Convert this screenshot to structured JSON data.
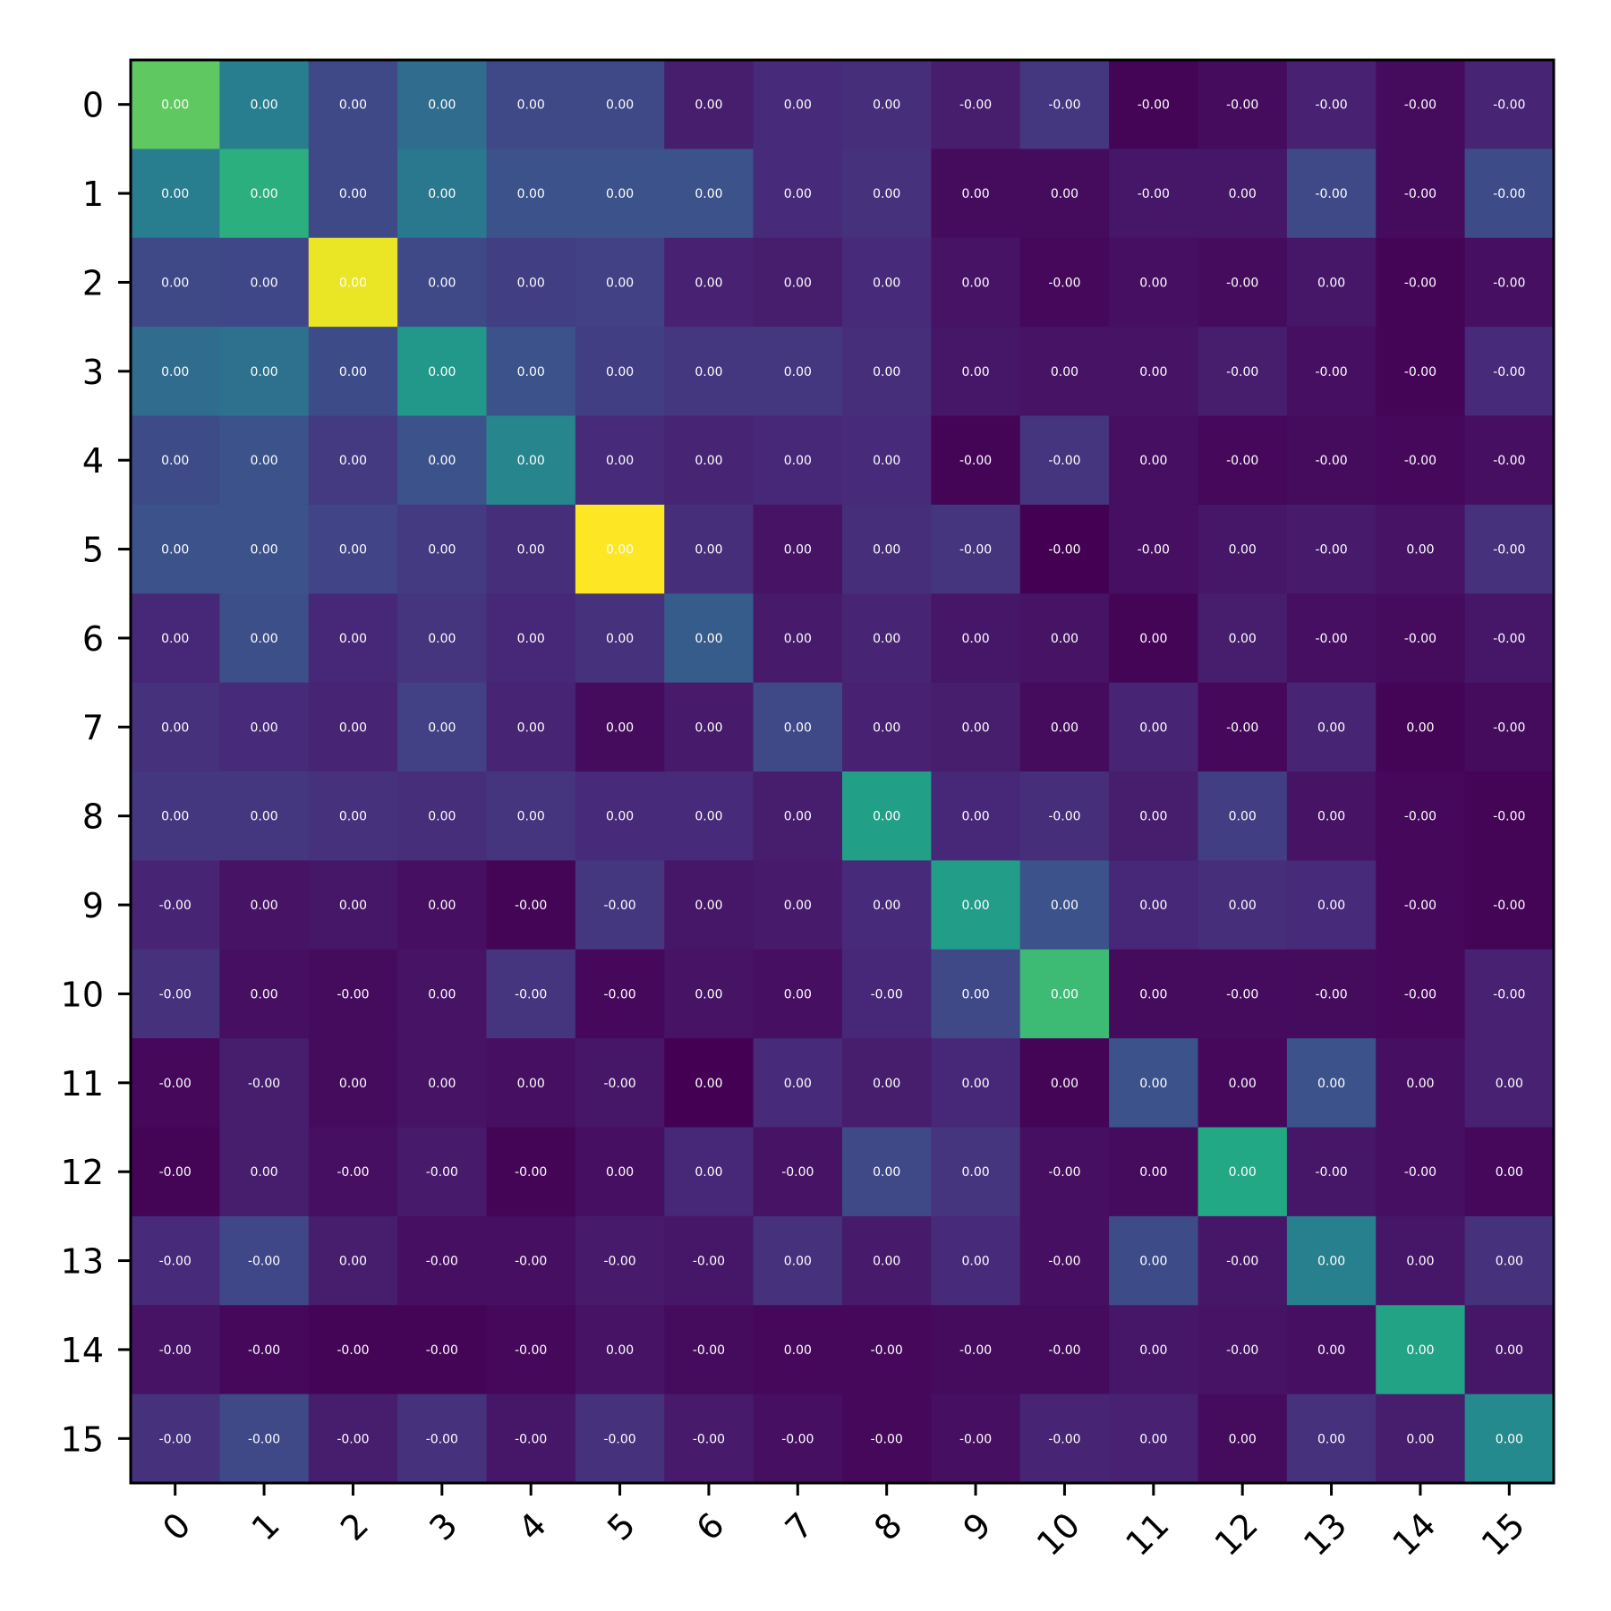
{
  "chart_data": {
    "type": "heatmap",
    "title": "",
    "xlabel": "",
    "ylabel": "",
    "colormap": "viridis",
    "x_categories": [
      "0",
      "1",
      "2",
      "3",
      "4",
      "5",
      "6",
      "7",
      "8",
      "9",
      "10",
      "11",
      "12",
      "13",
      "14",
      "15"
    ],
    "y_categories": [
      "0",
      "1",
      "2",
      "3",
      "4",
      "5",
      "6",
      "7",
      "8",
      "9",
      "10",
      "11",
      "12",
      "13",
      "14",
      "15"
    ],
    "vmin": 0.0,
    "vmax": 1.0,
    "intensity": [
      [
        0.75,
        0.42,
        0.22,
        0.35,
        0.22,
        0.22,
        0.08,
        0.12,
        0.13,
        0.08,
        0.16,
        0.01,
        0.03,
        0.09,
        0.03,
        0.1
      ],
      [
        0.42,
        0.63,
        0.22,
        0.4,
        0.25,
        0.25,
        0.25,
        0.12,
        0.14,
        0.03,
        0.03,
        0.06,
        0.06,
        0.22,
        0.03,
        0.23
      ],
      [
        0.22,
        0.21,
        0.97,
        0.22,
        0.18,
        0.19,
        0.09,
        0.08,
        0.12,
        0.05,
        0.02,
        0.04,
        0.03,
        0.06,
        0.01,
        0.04
      ],
      [
        0.35,
        0.37,
        0.23,
        0.53,
        0.25,
        0.18,
        0.16,
        0.16,
        0.13,
        0.06,
        0.05,
        0.05,
        0.08,
        0.04,
        0.01,
        0.12
      ],
      [
        0.23,
        0.25,
        0.17,
        0.25,
        0.45,
        0.12,
        0.1,
        0.11,
        0.12,
        0.01,
        0.15,
        0.04,
        0.02,
        0.03,
        0.02,
        0.04
      ],
      [
        0.25,
        0.25,
        0.2,
        0.17,
        0.13,
        1.0,
        0.13,
        0.05,
        0.13,
        0.15,
        0.0,
        0.04,
        0.06,
        0.07,
        0.05,
        0.14
      ],
      [
        0.11,
        0.24,
        0.11,
        0.15,
        0.11,
        0.14,
        0.29,
        0.07,
        0.1,
        0.06,
        0.05,
        0.01,
        0.08,
        0.04,
        0.03,
        0.06
      ],
      [
        0.14,
        0.12,
        0.1,
        0.19,
        0.1,
        0.03,
        0.07,
        0.22,
        0.09,
        0.08,
        0.03,
        0.1,
        0.02,
        0.1,
        0.01,
        0.03
      ],
      [
        0.16,
        0.16,
        0.14,
        0.13,
        0.15,
        0.12,
        0.12,
        0.08,
        0.56,
        0.11,
        0.13,
        0.08,
        0.18,
        0.05,
        0.02,
        0.01
      ],
      [
        0.1,
        0.05,
        0.06,
        0.04,
        0.01,
        0.16,
        0.06,
        0.07,
        0.12,
        0.55,
        0.25,
        0.11,
        0.13,
        0.12,
        0.02,
        0.01
      ],
      [
        0.14,
        0.04,
        0.03,
        0.05,
        0.15,
        0.02,
        0.05,
        0.04,
        0.11,
        0.22,
        0.68,
        0.03,
        0.03,
        0.03,
        0.02,
        0.09
      ],
      [
        0.02,
        0.08,
        0.03,
        0.05,
        0.04,
        0.06,
        0.0,
        0.12,
        0.08,
        0.11,
        0.01,
        0.25,
        0.02,
        0.25,
        0.04,
        0.09
      ],
      [
        0.01,
        0.08,
        0.04,
        0.07,
        0.01,
        0.04,
        0.11,
        0.05,
        0.22,
        0.15,
        0.04,
        0.03,
        0.6,
        0.06,
        0.04,
        0.02
      ],
      [
        0.12,
        0.21,
        0.08,
        0.04,
        0.04,
        0.07,
        0.06,
        0.14,
        0.07,
        0.12,
        0.04,
        0.23,
        0.06,
        0.43,
        0.06,
        0.14
      ],
      [
        0.05,
        0.02,
        0.01,
        0.01,
        0.02,
        0.05,
        0.03,
        0.02,
        0.02,
        0.03,
        0.03,
        0.06,
        0.05,
        0.04,
        0.58,
        0.06
      ],
      [
        0.14,
        0.22,
        0.08,
        0.14,
        0.06,
        0.14,
        0.07,
        0.04,
        0.02,
        0.04,
        0.1,
        0.09,
        0.03,
        0.14,
        0.08,
        0.47
      ]
    ],
    "cell_labels": [
      [
        "0.00",
        "0.00",
        "0.00",
        "0.00",
        "0.00",
        "0.00",
        "0.00",
        "0.00",
        "0.00",
        "-0.00",
        "-0.00",
        "-0.00",
        "-0.00",
        "-0.00",
        "-0.00",
        "-0.00"
      ],
      [
        "0.00",
        "0.00",
        "0.00",
        "0.00",
        "0.00",
        "0.00",
        "0.00",
        "0.00",
        "0.00",
        "0.00",
        "0.00",
        "-0.00",
        "0.00",
        "-0.00",
        "-0.00",
        "-0.00"
      ],
      [
        "0.00",
        "0.00",
        "0.00",
        "0.00",
        "0.00",
        "0.00",
        "0.00",
        "0.00",
        "0.00",
        "0.00",
        "-0.00",
        "0.00",
        "-0.00",
        "0.00",
        "-0.00",
        "-0.00"
      ],
      [
        "0.00",
        "0.00",
        "0.00",
        "0.00",
        "0.00",
        "0.00",
        "0.00",
        "0.00",
        "0.00",
        "0.00",
        "0.00",
        "0.00",
        "-0.00",
        "-0.00",
        "-0.00",
        "-0.00"
      ],
      [
        "0.00",
        "0.00",
        "0.00",
        "0.00",
        "0.00",
        "0.00",
        "0.00",
        "0.00",
        "0.00",
        "-0.00",
        "-0.00",
        "0.00",
        "-0.00",
        "-0.00",
        "-0.00",
        "-0.00"
      ],
      [
        "0.00",
        "0.00",
        "0.00",
        "0.00",
        "0.00",
        "0.00",
        "0.00",
        "0.00",
        "0.00",
        "-0.00",
        "-0.00",
        "-0.00",
        "0.00",
        "-0.00",
        "0.00",
        "-0.00"
      ],
      [
        "0.00",
        "0.00",
        "0.00",
        "0.00",
        "0.00",
        "0.00",
        "0.00",
        "0.00",
        "0.00",
        "0.00",
        "0.00",
        "0.00",
        "0.00",
        "-0.00",
        "-0.00",
        "-0.00"
      ],
      [
        "0.00",
        "0.00",
        "0.00",
        "0.00",
        "0.00",
        "0.00",
        "0.00",
        "0.00",
        "0.00",
        "0.00",
        "0.00",
        "0.00",
        "-0.00",
        "0.00",
        "0.00",
        "-0.00"
      ],
      [
        "0.00",
        "0.00",
        "0.00",
        "0.00",
        "0.00",
        "0.00",
        "0.00",
        "0.00",
        "0.00",
        "0.00",
        "-0.00",
        "0.00",
        "0.00",
        "0.00",
        "-0.00",
        "-0.00"
      ],
      [
        "-0.00",
        "0.00",
        "0.00",
        "0.00",
        "-0.00",
        "-0.00",
        "0.00",
        "0.00",
        "0.00",
        "0.00",
        "0.00",
        "0.00",
        "0.00",
        "0.00",
        "-0.00",
        "-0.00"
      ],
      [
        "-0.00",
        "0.00",
        "-0.00",
        "0.00",
        "-0.00",
        "-0.00",
        "0.00",
        "0.00",
        "-0.00",
        "0.00",
        "0.00",
        "0.00",
        "-0.00",
        "-0.00",
        "-0.00",
        "-0.00"
      ],
      [
        "-0.00",
        "-0.00",
        "0.00",
        "0.00",
        "0.00",
        "-0.00",
        "0.00",
        "0.00",
        "0.00",
        "0.00",
        "0.00",
        "0.00",
        "0.00",
        "0.00",
        "0.00",
        "0.00"
      ],
      [
        "-0.00",
        "0.00",
        "-0.00",
        "-0.00",
        "-0.00",
        "0.00",
        "0.00",
        "-0.00",
        "0.00",
        "0.00",
        "-0.00",
        "0.00",
        "0.00",
        "-0.00",
        "-0.00",
        "0.00"
      ],
      [
        "-0.00",
        "-0.00",
        "0.00",
        "-0.00",
        "-0.00",
        "-0.00",
        "-0.00",
        "0.00",
        "0.00",
        "0.00",
        "-0.00",
        "0.00",
        "-0.00",
        "0.00",
        "0.00",
        "0.00"
      ],
      [
        "-0.00",
        "-0.00",
        "-0.00",
        "-0.00",
        "-0.00",
        "0.00",
        "-0.00",
        "0.00",
        "-0.00",
        "-0.00",
        "-0.00",
        "0.00",
        "-0.00",
        "0.00",
        "0.00",
        "0.00"
      ],
      [
        "-0.00",
        "-0.00",
        "-0.00",
        "-0.00",
        "-0.00",
        "-0.00",
        "-0.00",
        "-0.00",
        "-0.00",
        "-0.00",
        "-0.00",
        "0.00",
        "0.00",
        "0.00",
        "0.00",
        "0.00"
      ]
    ],
    "grid": false,
    "legend": "none"
  }
}
